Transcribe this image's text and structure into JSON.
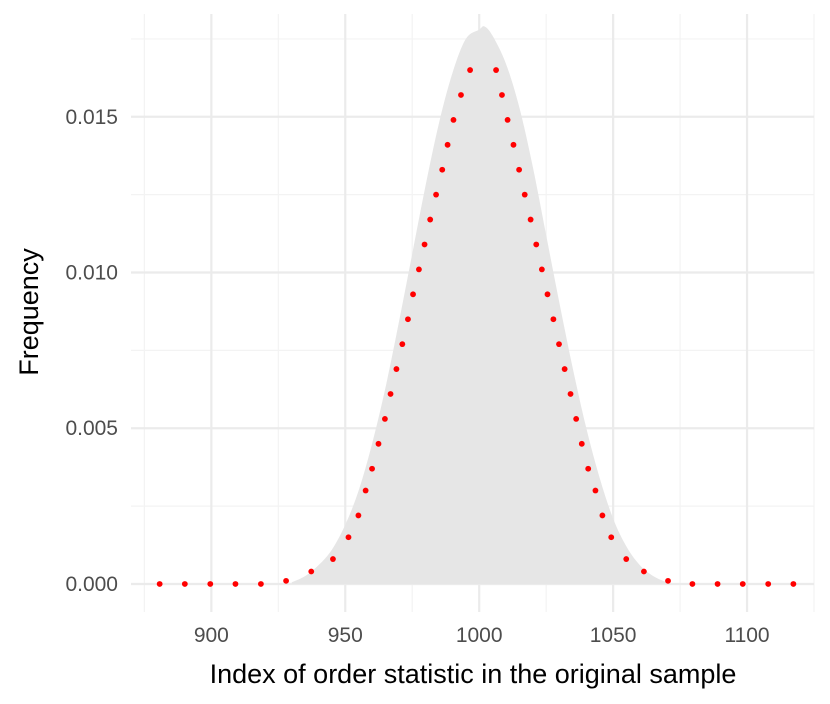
{
  "chart_data": {
    "type": "area",
    "title": "",
    "xlabel": "Index of order statistic in the original sample",
    "ylabel": "Frequency",
    "xlim": [
      870,
      1125
    ],
    "ylim": [
      -0.0009,
      0.0183
    ],
    "x_ticks": [
      900,
      950,
      1000,
      1050,
      1100
    ],
    "x_tick_labels": [
      "900",
      "950",
      "1000",
      "1050",
      "1100"
    ],
    "y_ticks": [
      0.0,
      0.005,
      0.01,
      0.015
    ],
    "y_tick_labels": [
      "0.000",
      "0.005",
      "0.010",
      "0.015"
    ],
    "grid": true,
    "legend": "none",
    "colors": {
      "area_fill": "#e6e6e6",
      "points": "#ff0000",
      "grid_major": "#ebebeb",
      "grid_minor": "#f3f3f3"
    },
    "series": [
      {
        "kind": "density-area",
        "x": [
          930,
          935,
          940,
          945,
          950,
          955,
          960,
          965,
          970,
          975,
          980,
          985,
          990,
          995,
          1000,
          1002,
          1005,
          1010,
          1015,
          1020,
          1025,
          1030,
          1035,
          1040,
          1045,
          1050,
          1055,
          1060,
          1065,
          1070
        ],
        "y": [
          5e-05,
          0.00025,
          0.0006,
          0.0011,
          0.0019,
          0.003,
          0.0045,
          0.0063,
          0.0084,
          0.0106,
          0.0128,
          0.0148,
          0.0164,
          0.0175,
          0.0178,
          0.0179,
          0.0176,
          0.0167,
          0.0153,
          0.0134,
          0.0112,
          0.009,
          0.0069,
          0.005,
          0.0034,
          0.0021,
          0.0012,
          0.0006,
          0.00025,
          5e-05
        ]
      },
      {
        "kind": "points",
        "x": [
          880.7,
          890.1,
          899.6,
          909.0,
          918.5,
          927.9,
          937.3,
          945.4,
          951.2,
          954.9,
          957.6,
          960.0,
          962.4,
          964.8,
          966.9,
          969.1,
          971.3,
          973.4,
          975.3,
          977.5,
          979.6,
          981.7,
          983.9,
          986.2,
          988.2,
          990.4,
          993.2,
          996.6,
          1006.3,
          1008.5,
          1010.6,
          1012.8,
          1014.9,
          1017.0,
          1019.2,
          1021.3,
          1023.4,
          1025.5,
          1027.7,
          1029.8,
          1031.9,
          1034.1,
          1036.2,
          1038.3,
          1040.7,
          1043.4,
          1046.0,
          1049.3,
          1054.9,
          1061.5,
          1070.5,
          1079.6,
          1089.0,
          1098.4,
          1107.9,
          1117.3
        ],
        "y": [
          0.0,
          0.0,
          0.0,
          0.0,
          0.0,
          0.0001,
          0.0004,
          0.0008,
          0.0015,
          0.0022,
          0.003,
          0.0037,
          0.0045,
          0.0053,
          0.0061,
          0.0069,
          0.0077,
          0.0085,
          0.0093,
          0.0101,
          0.0109,
          0.0117,
          0.0125,
          0.0133,
          0.0141,
          0.0149,
          0.0157,
          0.0165,
          0.0165,
          0.0157,
          0.0149,
          0.0141,
          0.0133,
          0.0125,
          0.0117,
          0.0109,
          0.0101,
          0.0093,
          0.0085,
          0.0077,
          0.0069,
          0.0061,
          0.0053,
          0.0045,
          0.0037,
          0.003,
          0.0022,
          0.0015,
          0.0008,
          0.0004,
          0.0001,
          0.0,
          0.0,
          0.0,
          0.0,
          0.0
        ]
      }
    ]
  }
}
